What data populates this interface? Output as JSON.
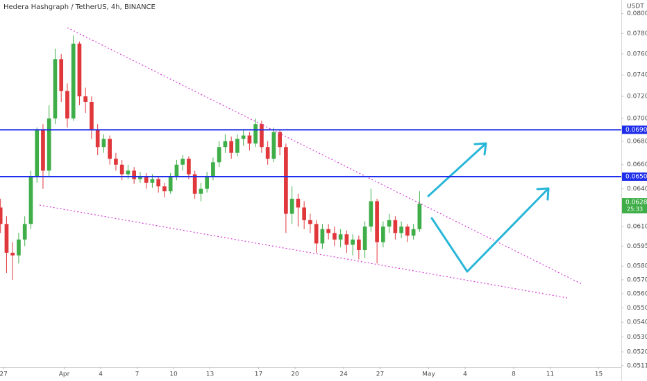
{
  "chart_data": {
    "type": "candlestick",
    "title": "Hedera Hashgraph / TetherUS, 4h, BINANCE",
    "y_axis_label": "USDT",
    "log_scale": true,
    "up_color": "#3fae49",
    "down_color": "#e0373b",
    "xlim": [
      -0.29,
      50.86
    ],
    "ylim": [
      0.051,
      0.0814
    ],
    "xticks": [
      {
        "value": 0,
        "label": "27"
      },
      {
        "value": 5,
        "label": "Apr"
      },
      {
        "value": 8,
        "label": "4"
      },
      {
        "value": 11,
        "label": "7"
      },
      {
        "value": 14,
        "label": "10"
      },
      {
        "value": 17,
        "label": "13"
      },
      {
        "value": 21,
        "label": "17"
      },
      {
        "value": 24,
        "label": "20"
      },
      {
        "value": 28,
        "label": "24"
      },
      {
        "value": 31,
        "label": "27"
      },
      {
        "value": 35,
        "label": "May"
      },
      {
        "value": 38,
        "label": "4"
      },
      {
        "value": 42,
        "label": "8"
      },
      {
        "value": 45,
        "label": "11"
      },
      {
        "value": 49,
        "label": "15"
      }
    ],
    "yticks": [
      {
        "value": 0.08,
        "label": "0.0800"
      },
      {
        "value": 0.078,
        "label": "0.0780"
      },
      {
        "value": 0.076,
        "label": "0.0760"
      },
      {
        "value": 0.074,
        "label": "0.0740"
      },
      {
        "value": 0.072,
        "label": "0.0720"
      },
      {
        "value": 0.07,
        "label": "0.0700"
      },
      {
        "value": 0.068,
        "label": "0.0680"
      },
      {
        "value": 0.066,
        "label": "0.0660"
      },
      {
        "value": 0.064,
        "label": "0.0640"
      },
      {
        "value": 0.061,
        "label": "0.0610"
      },
      {
        "value": 0.0595,
        "label": "0.0595"
      },
      {
        "value": 0.058,
        "label": "0.0580"
      },
      {
        "value": 0.057,
        "label": "0.0570"
      },
      {
        "value": 0.056,
        "label": "0.0560"
      },
      {
        "value": 0.055,
        "label": "0.0550"
      },
      {
        "value": 0.054,
        "label": "0.0540"
      },
      {
        "value": 0.053,
        "label": "0.0530"
      },
      {
        "value": 0.052,
        "label": "0.0520"
      },
      {
        "value": 0.0511,
        "label": "0.0511"
      }
    ],
    "levels": [
      {
        "value": 0.069,
        "label": "0.0690",
        "color": "#1f2eea"
      },
      {
        "value": 0.065,
        "label": "0.0650",
        "color": "#1f2eea"
      }
    ],
    "last_price": {
      "value": 0.0628,
      "label": "0.0628",
      "countdown": "25:33"
    },
    "x": [
      -0.25,
      0.25,
      0.75,
      1.25,
      1.75,
      2.25,
      2.75,
      3.25,
      3.75,
      4.25,
      4.75,
      5.25,
      5.75,
      6.25,
      6.75,
      7.25,
      7.75,
      8.25,
      8.75,
      9.25,
      9.75,
      10.25,
      10.75,
      11.25,
      11.75,
      12.25,
      12.75,
      13.25,
      13.75,
      14.25,
      14.75,
      15.25,
      15.75,
      16.25,
      16.75,
      17.25,
      17.75,
      18.25,
      18.75,
      19.25,
      19.75,
      20.25,
      20.75,
      21.25,
      21.75,
      22.25,
      22.75,
      23.25,
      23.75,
      24.25,
      24.75,
      25.25,
      25.75,
      26.25,
      26.75,
      27.25,
      27.75,
      28.25,
      28.75,
      29.25,
      29.75,
      30.25,
      30.75,
      31.25,
      31.75,
      32.25,
      32.75,
      33.25,
      33.75,
      34.25
    ],
    "open": [
      0.0625,
      0.0612,
      0.059,
      0.0588,
      0.06,
      0.0612,
      0.065,
      0.069,
      0.0655,
      0.07,
      0.0755,
      0.0725,
      0.07,
      0.077,
      0.072,
      0.0715,
      0.069,
      0.0675,
      0.0682,
      0.0665,
      0.066,
      0.0652,
      0.0655,
      0.0648,
      0.065,
      0.0645,
      0.0648,
      0.0642,
      0.0638,
      0.065,
      0.066,
      0.0665,
      0.0652,
      0.0636,
      0.064,
      0.065,
      0.0662,
      0.0675,
      0.068,
      0.067,
      0.0682,
      0.0685,
      0.0678,
      0.0695,
      0.0675,
      0.0665,
      0.0688,
      0.0675,
      0.062,
      0.0632,
      0.0625,
      0.0615,
      0.0612,
      0.0597,
      0.0608,
      0.0605,
      0.06,
      0.0604,
      0.0596,
      0.06,
      0.0592,
      0.061,
      0.063,
      0.0598,
      0.061,
      0.0615,
      0.0605,
      0.061,
      0.0603,
      0.0608
    ],
    "high": [
      0.0632,
      0.0618,
      0.0598,
      0.0605,
      0.0618,
      0.0655,
      0.0692,
      0.0695,
      0.0712,
      0.0765,
      0.076,
      0.0732,
      0.0778,
      0.0772,
      0.0728,
      0.072,
      0.0695,
      0.0686,
      0.0685,
      0.067,
      0.0664,
      0.066,
      0.0658,
      0.0654,
      0.0653,
      0.0652,
      0.065,
      0.0645,
      0.0653,
      0.0664,
      0.0668,
      0.0667,
      0.0655,
      0.0645,
      0.0654,
      0.0666,
      0.068,
      0.0686,
      0.0684,
      0.0686,
      0.069,
      0.0688,
      0.07,
      0.0698,
      0.068,
      0.0692,
      0.069,
      0.0678,
      0.0642,
      0.0636,
      0.063,
      0.062,
      0.0615,
      0.0612,
      0.0612,
      0.061,
      0.0608,
      0.0607,
      0.0604,
      0.0603,
      0.0614,
      0.064,
      0.0632,
      0.0614,
      0.062,
      0.0618,
      0.0614,
      0.0612,
      0.0612,
      0.0638
    ],
    "low": [
      0.0605,
      0.0575,
      0.057,
      0.0582,
      0.0595,
      0.0608,
      0.0645,
      0.064,
      0.065,
      0.0695,
      0.0715,
      0.0692,
      0.0698,
      0.0712,
      0.0705,
      0.0682,
      0.0668,
      0.067,
      0.066,
      0.0655,
      0.0647,
      0.0648,
      0.0644,
      0.0645,
      0.064,
      0.0641,
      0.0637,
      0.0633,
      0.0636,
      0.0647,
      0.0655,
      0.0648,
      0.0632,
      0.063,
      0.0637,
      0.0647,
      0.0658,
      0.067,
      0.0665,
      0.0667,
      0.0676,
      0.0672,
      0.0675,
      0.067,
      0.066,
      0.0662,
      0.0668,
      0.0605,
      0.0612,
      0.061,
      0.0608,
      0.0605,
      0.059,
      0.0593,
      0.06,
      0.0595,
      0.0594,
      0.059,
      0.0588,
      0.0585,
      0.0586,
      0.0606,
      0.0582,
      0.0594,
      0.0605,
      0.06,
      0.0601,
      0.0598,
      0.06,
      0.0606
    ],
    "close": [
      0.0612,
      0.059,
      0.0588,
      0.06,
      0.0612,
      0.065,
      0.069,
      0.0655,
      0.07,
      0.0755,
      0.0725,
      0.07,
      0.077,
      0.072,
      0.0715,
      0.069,
      0.0675,
      0.0682,
      0.0665,
      0.066,
      0.0652,
      0.0655,
      0.0648,
      0.065,
      0.0645,
      0.0648,
      0.0642,
      0.0638,
      0.065,
      0.066,
      0.0665,
      0.0652,
      0.0636,
      0.064,
      0.065,
      0.0662,
      0.0675,
      0.068,
      0.067,
      0.0682,
      0.0685,
      0.0678,
      0.0695,
      0.0675,
      0.0665,
      0.0688,
      0.0675,
      0.062,
      0.0632,
      0.0625,
      0.0615,
      0.0612,
      0.0597,
      0.0608,
      0.0605,
      0.06,
      0.0604,
      0.0596,
      0.06,
      0.0592,
      0.061,
      0.063,
      0.0598,
      0.061,
      0.0615,
      0.0605,
      0.061,
      0.0603,
      0.0608,
      0.0628
    ]
  }
}
